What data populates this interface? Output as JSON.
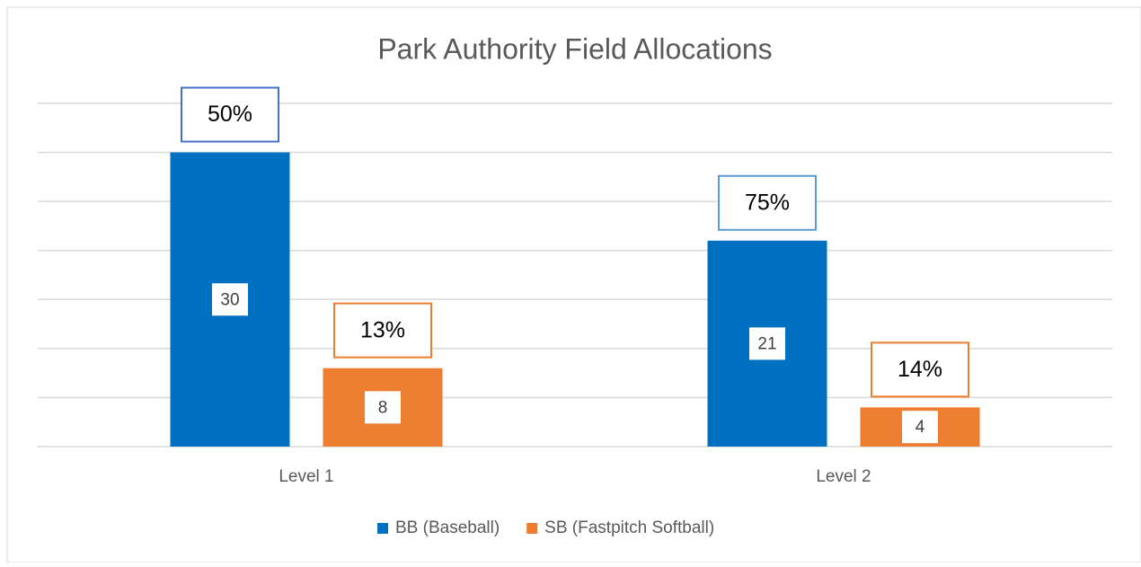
{
  "chart_data": {
    "type": "bar",
    "title": "Park Authority Field Allocations",
    "categories": [
      "Level 1",
      "Level 2"
    ],
    "series": [
      {
        "name": "BB (Baseball)",
        "color": "#0070c0",
        "values": [
          30,
          21
        ],
        "annotations": [
          "50%",
          "75%"
        ],
        "annotation_colors": [
          "#4472c4",
          "#5b9bd5"
        ]
      },
      {
        "name": "SB (Fastpitch Softball)",
        "color": "#ed7d31",
        "values": [
          8,
          4
        ],
        "annotations": [
          "13%",
          "14%"
        ],
        "annotation_colors": [
          "#ed7d31",
          "#ed7d31"
        ]
      }
    ],
    "ylim": [
      0,
      35
    ],
    "yticks": [
      0,
      5,
      10,
      15,
      20,
      25,
      30,
      35
    ],
    "grid": true,
    "legend": "bottom"
  }
}
